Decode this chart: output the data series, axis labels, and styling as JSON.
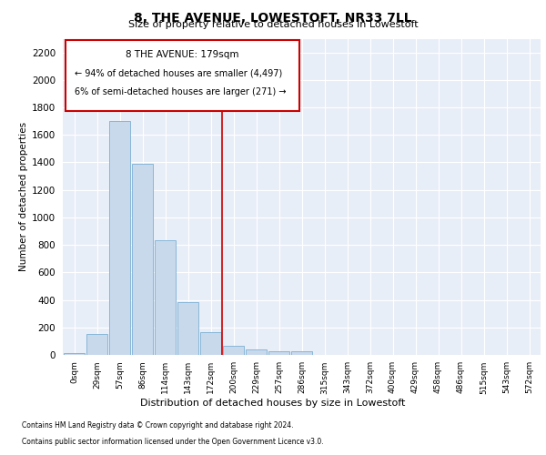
{
  "title": "8, THE AVENUE, LOWESTOFT, NR33 7LL",
  "subtitle": "Size of property relative to detached houses in Lowestoft",
  "xlabel": "Distribution of detached houses by size in Lowestoft",
  "ylabel": "Number of detached properties",
  "bar_labels": [
    "0sqm",
    "29sqm",
    "57sqm",
    "86sqm",
    "114sqm",
    "143sqm",
    "172sqm",
    "200sqm",
    "229sqm",
    "257sqm",
    "286sqm",
    "315sqm",
    "343sqm",
    "372sqm",
    "400sqm",
    "429sqm",
    "458sqm",
    "486sqm",
    "515sqm",
    "543sqm",
    "572sqm"
  ],
  "bar_values": [
    15,
    155,
    1700,
    1390,
    835,
    385,
    165,
    65,
    40,
    28,
    28,
    0,
    0,
    0,
    0,
    0,
    0,
    0,
    0,
    0,
    0
  ],
  "bar_color": "#c9d9ec",
  "bar_edgecolor": "#7aafd4",
  "bg_color": "#e8eef7",
  "grid_color": "#ffffff",
  "vline_x": 6.5,
  "vline_color": "#cc0000",
  "ylim": [
    0,
    2300
  ],
  "yticks": [
    0,
    200,
    400,
    600,
    800,
    1000,
    1200,
    1400,
    1600,
    1800,
    2000,
    2200
  ],
  "annotation_title": "8 THE AVENUE: 179sqm",
  "annotation_line1": "← 94% of detached houses are smaller (4,497)",
  "annotation_line2": "6% of semi-detached houses are larger (271) →",
  "footer1": "Contains HM Land Registry data © Crown copyright and database right 2024.",
  "footer2": "Contains public sector information licensed under the Open Government Licence v3.0."
}
